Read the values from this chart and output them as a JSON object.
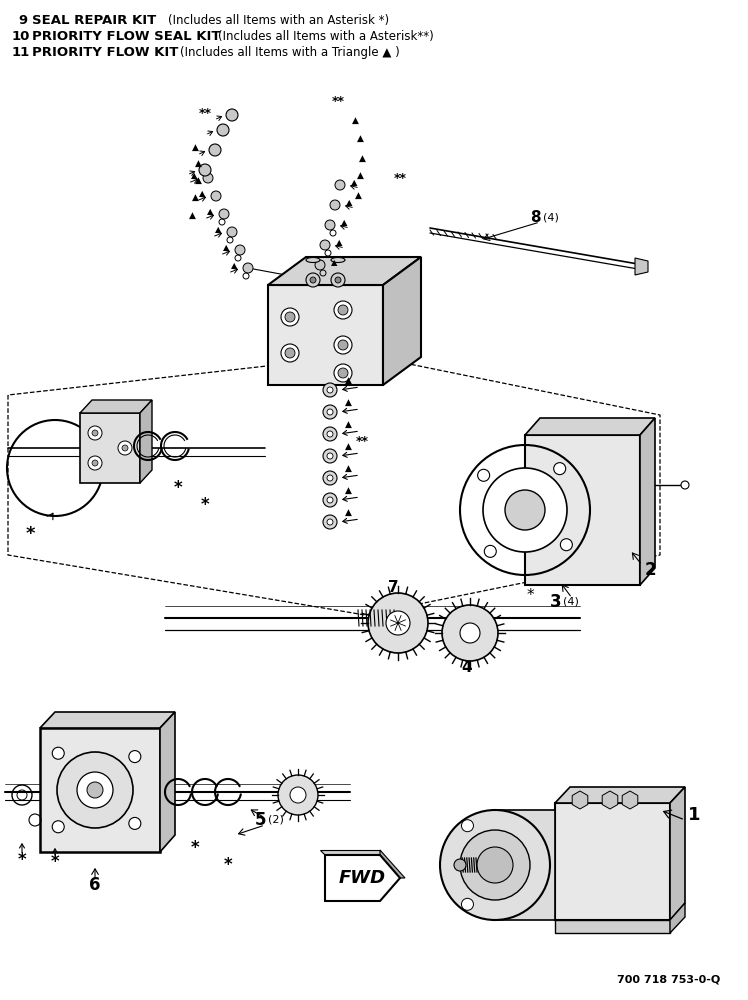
{
  "background_color": "#ffffff",
  "part_number": "700 718 753-0-Q",
  "fig_width": 7.48,
  "fig_height": 10.0,
  "dpi": 100,
  "header": [
    {
      "num": "9",
      "bold": "SEAL REPAIR KIT",
      "normal": " (Includes all Items with an Asterisk *)"
    },
    {
      "num": "10",
      "bold": "PRIORITY FLOW SEAL KIT",
      "normal": "(Includes all Items with a Asterisk**)"
    },
    {
      "num": "11",
      "bold": "PRIORITY FLOW KIT",
      "normal": "(Includes all Items with a Triangle ▲ )"
    }
  ]
}
